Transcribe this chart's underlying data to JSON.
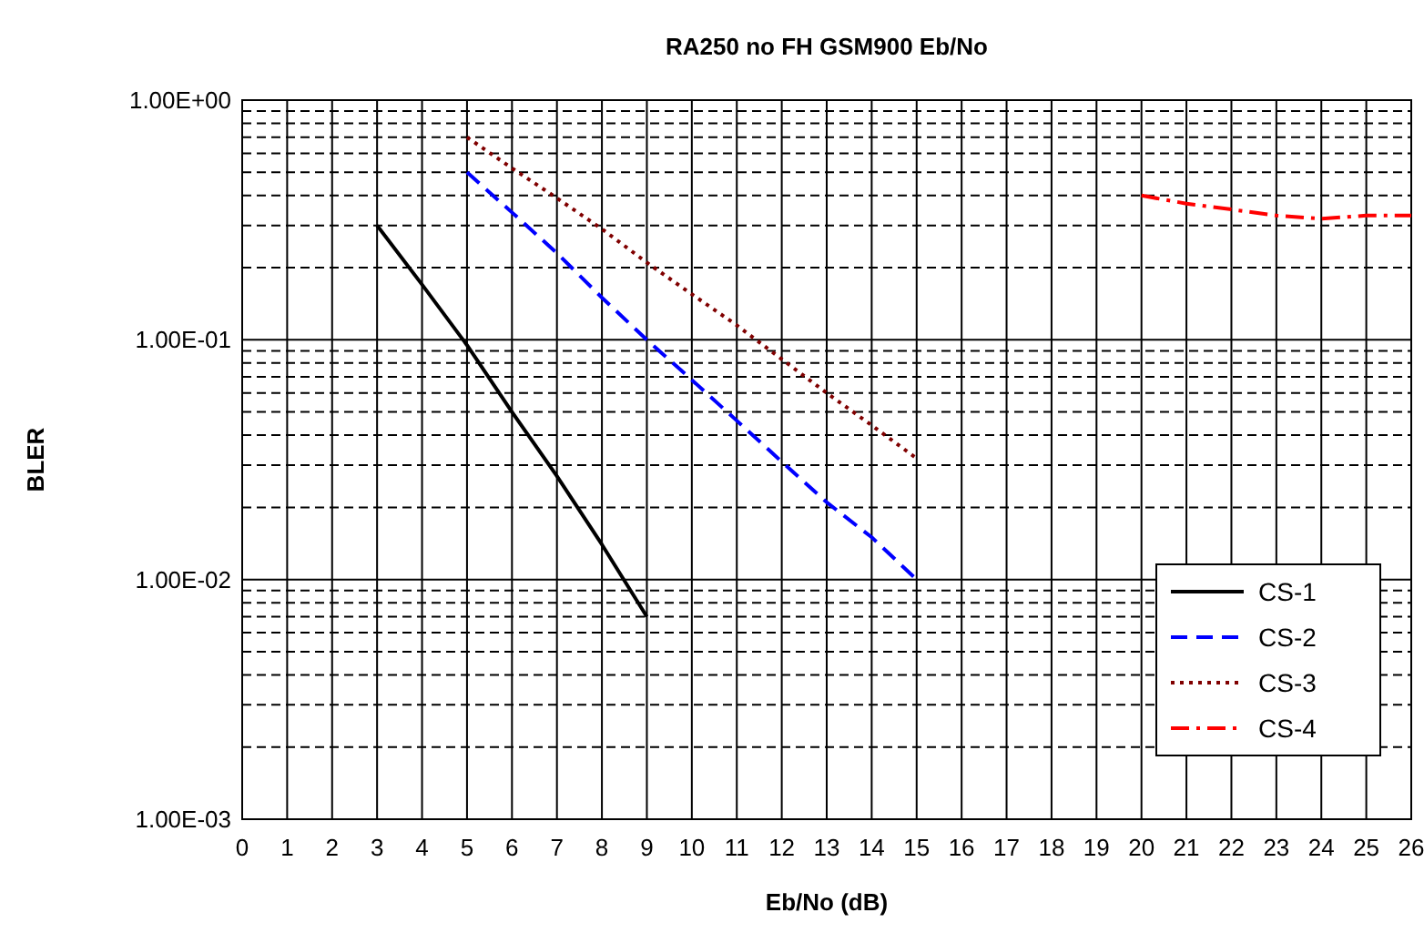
{
  "chart_data": {
    "type": "line",
    "title": "RA250 no FH GSM900 Eb/No",
    "xlabel": "Eb/No  (dB)",
    "ylabel": "BLER",
    "log": "y",
    "grid": true,
    "legend": "bottom right",
    "xlim": [
      0,
      26
    ],
    "xticks": [
      0,
      1,
      2,
      3,
      4,
      5,
      6,
      7,
      8,
      9,
      10,
      11,
      12,
      13,
      14,
      15,
      16,
      17,
      18,
      19,
      20,
      21,
      22,
      23,
      24,
      25,
      26
    ],
    "ylim": [
      0.001,
      1
    ],
    "yticks": [
      {
        "value": 0.001,
        "label": "1.00E-03"
      },
      {
        "value": 0.002,
        "label": null
      },
      {
        "value": 0.003,
        "label": null
      },
      {
        "value": 0.004,
        "label": null
      },
      {
        "value": 0.005,
        "label": null
      },
      {
        "value": 0.006,
        "label": null
      },
      {
        "value": 0.007,
        "label": null
      },
      {
        "value": 0.008,
        "label": null
      },
      {
        "value": 0.009,
        "label": null
      },
      {
        "value": 0.01,
        "label": "1.00E-02"
      },
      {
        "value": 0.02,
        "label": null
      },
      {
        "value": 0.03,
        "label": null
      },
      {
        "value": 0.04,
        "label": null
      },
      {
        "value": 0.05,
        "label": null
      },
      {
        "value": 0.06,
        "label": null
      },
      {
        "value": 0.07,
        "label": null
      },
      {
        "value": 0.08,
        "label": null
      },
      {
        "value": 0.09,
        "label": null
      },
      {
        "value": 0.1,
        "label": "1.00E-01"
      },
      {
        "value": 0.2,
        "label": null
      },
      {
        "value": 0.3,
        "label": null
      },
      {
        "value": 0.4,
        "label": null
      },
      {
        "value": 0.5,
        "label": null
      },
      {
        "value": 0.6,
        "label": null
      },
      {
        "value": 0.7,
        "label": null
      },
      {
        "value": 0.8,
        "label": null
      },
      {
        "value": 0.9,
        "label": null
      },
      {
        "value": 1,
        "label": "1.00E+00"
      }
    ],
    "series": [
      {
        "name": "CS-1",
        "color": "#000000",
        "line_style": "solid",
        "x": [
          3,
          4,
          5,
          6,
          7,
          8,
          9
        ],
        "values": [
          0.3,
          0.17,
          0.095,
          0.05,
          0.027,
          0.014,
          0.007
        ]
      },
      {
        "name": "CS-2",
        "color": "#0000ff",
        "line_style": "dashed",
        "x": [
          5,
          6,
          7,
          8,
          9,
          10,
          11,
          12,
          13,
          14,
          15
        ],
        "values": [
          0.5,
          0.34,
          0.23,
          0.15,
          0.1,
          0.068,
          0.046,
          0.031,
          0.021,
          0.015,
          0.01
        ]
      },
      {
        "name": "CS-3",
        "color": "#800000",
        "line_style": "dotted",
        "x": [
          5,
          6,
          7,
          8,
          9,
          10,
          11,
          12,
          13,
          14,
          15
        ],
        "values": [
          0.7,
          0.52,
          0.39,
          0.29,
          0.21,
          0.155,
          0.115,
          0.083,
          0.06,
          0.044,
          0.032
        ]
      },
      {
        "name": "CS-4",
        "color": "#ff0000",
        "line_style": "dashdot",
        "x": [
          20,
          21,
          22,
          23,
          24,
          25,
          26
        ],
        "values": [
          0.4,
          0.37,
          0.35,
          0.33,
          0.32,
          0.33,
          0.33
        ]
      }
    ]
  }
}
